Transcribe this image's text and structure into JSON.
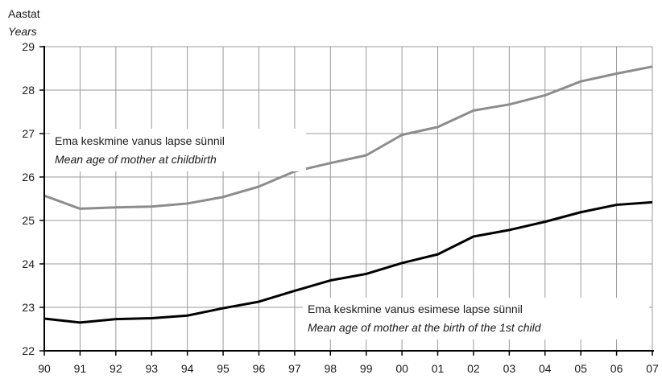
{
  "chart_data": {
    "type": "line",
    "ylabel": "Aastat",
    "ylabel_en": "Years",
    "x": [
      "90",
      "91",
      "92",
      "93",
      "94",
      "95",
      "96",
      "97",
      "98",
      "99",
      "00",
      "01",
      "02",
      "03",
      "04",
      "05",
      "06",
      "07"
    ],
    "ylim": [
      22,
      29
    ],
    "yticks": [
      22,
      23,
      24,
      25,
      26,
      27,
      28,
      29
    ],
    "grid": true,
    "series": [
      {
        "name": "Ema keskmine vanus lapse sünnil",
        "name_en": "Mean age of mother at childbirth",
        "color": "#8c8c8c",
        "values": [
          25.57,
          25.27,
          25.3,
          25.32,
          25.39,
          25.54,
          25.78,
          26.13,
          26.32,
          26.5,
          26.97,
          27.15,
          27.53,
          27.67,
          27.88,
          28.2,
          28.38,
          28.54
        ]
      },
      {
        "name": "Ema keskmine vanus esimese lapse sünnil",
        "name_en": "Mean age of mother at the birth of the 1st child",
        "color": "#000000",
        "values": [
          22.74,
          22.65,
          22.73,
          22.75,
          22.81,
          22.98,
          23.13,
          23.38,
          23.62,
          23.77,
          24.02,
          24.22,
          24.63,
          24.78,
          24.97,
          25.19,
          25.36,
          25.42
        ]
      }
    ]
  }
}
